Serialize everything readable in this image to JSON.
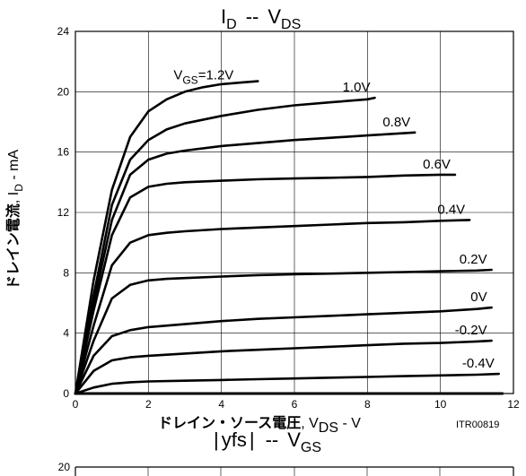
{
  "chart_data": {
    "type": "line",
    "title": {
      "main": "I",
      "sub": "D",
      "sep": "--",
      "main2": "V",
      "sub2": "DS"
    },
    "xlabel": {
      "jp": "ドレイン・ソース電圧",
      "main": ", V",
      "sub": "DS",
      "unit": " - V"
    },
    "ylabel": {
      "jp": "ドレイン電流",
      "main": ", I",
      "sub": "D",
      "unit": " - mA"
    },
    "figure_code": "ITR00819",
    "xlim": [
      0,
      12
    ],
    "ylim": [
      0,
      24
    ],
    "xticks": [
      "0",
      "2",
      "4",
      "6",
      "8",
      "10",
      "12"
    ],
    "yticks": [
      "0",
      "4",
      "8",
      "12",
      "16",
      "20",
      "24"
    ],
    "grid": true,
    "series": [
      {
        "name": "VGS=1.2V",
        "label_lead": "V",
        "label_sub": "GS",
        "label_tail": "=1.2V",
        "x": [
          0,
          0.5,
          1,
          1.5,
          2,
          2.5,
          3,
          3.5,
          4,
          4.5,
          5
        ],
        "y": [
          0,
          7.5,
          13.5,
          17,
          18.7,
          19.5,
          20,
          20.3,
          20.5,
          20.6,
          20.7
        ]
      },
      {
        "name": "1.0V",
        "x": [
          0,
          0.5,
          1,
          1.5,
          2,
          2.5,
          3,
          4,
          5,
          6,
          7,
          8,
          8.2
        ],
        "y": [
          0,
          6.5,
          12.5,
          15.5,
          16.8,
          17.5,
          17.9,
          18.4,
          18.8,
          19.1,
          19.3,
          19.5,
          19.6
        ]
      },
      {
        "name": "0.8V",
        "x": [
          0,
          0.5,
          1,
          1.5,
          2,
          2.5,
          3,
          4,
          5,
          6,
          7,
          8,
          9,
          9.3
        ],
        "y": [
          0,
          6,
          11.5,
          14.5,
          15.5,
          15.9,
          16.1,
          16.4,
          16.6,
          16.8,
          16.95,
          17.1,
          17.25,
          17.3
        ]
      },
      {
        "name": "0.6V",
        "x": [
          0,
          0.5,
          1,
          1.5,
          2,
          2.5,
          3,
          4,
          5,
          6,
          7,
          8,
          9,
          10,
          10.4
        ],
        "y": [
          0,
          5.5,
          10.5,
          13,
          13.7,
          13.9,
          14,
          14.1,
          14.2,
          14.25,
          14.3,
          14.35,
          14.45,
          14.5,
          14.5
        ]
      },
      {
        "name": "0.4V",
        "x": [
          0,
          0.5,
          1,
          1.5,
          2,
          2.5,
          3,
          4,
          5,
          6,
          7,
          8,
          9,
          10,
          10.8
        ],
        "y": [
          0,
          4.5,
          8.5,
          10,
          10.5,
          10.65,
          10.75,
          10.9,
          11,
          11.1,
          11.2,
          11.3,
          11.35,
          11.45,
          11.5
        ]
      },
      {
        "name": "0.2V",
        "x": [
          0,
          0.5,
          1,
          1.5,
          2,
          2.5,
          3,
          4,
          5,
          6,
          7,
          8,
          9,
          10,
          11,
          11.4
        ],
        "y": [
          0,
          3.5,
          6.3,
          7.2,
          7.5,
          7.6,
          7.65,
          7.75,
          7.85,
          7.9,
          7.95,
          8,
          8.05,
          8.1,
          8.15,
          8.2
        ]
      },
      {
        "name": "0V",
        "x": [
          0,
          0.5,
          1,
          1.5,
          2,
          3,
          4,
          5,
          6,
          7,
          8,
          9,
          10,
          11,
          11.4
        ],
        "y": [
          0,
          2.5,
          3.8,
          4.2,
          4.4,
          4.6,
          4.8,
          4.95,
          5.05,
          5.15,
          5.25,
          5.35,
          5.45,
          5.6,
          5.7
        ]
      },
      {
        "name": "-0.2V",
        "x": [
          0,
          0.5,
          1,
          1.5,
          2,
          3,
          4,
          5,
          6,
          7,
          8,
          9,
          10,
          11,
          11.4
        ],
        "y": [
          0,
          1.5,
          2.2,
          2.4,
          2.5,
          2.65,
          2.8,
          2.9,
          3,
          3.1,
          3.2,
          3.3,
          3.35,
          3.45,
          3.5
        ]
      },
      {
        "name": "-0.4V",
        "x": [
          0,
          0.5,
          1,
          1.5,
          2,
          3,
          4,
          5,
          6,
          7,
          8,
          9,
          10,
          11,
          11.6
        ],
        "y": [
          0,
          0.4,
          0.65,
          0.75,
          0.8,
          0.85,
          0.9,
          0.95,
          1,
          1.05,
          1.1,
          1.15,
          1.2,
          1.25,
          1.3
        ]
      },
      {
        "name": "",
        "x": [
          0,
          11.7
        ],
        "y": [
          0,
          0
        ]
      }
    ]
  },
  "second_chart": {
    "title": {
      "bar_left": "|",
      "main": "yfs",
      "bar_right": "|",
      "sep": "--",
      "main2": "V",
      "sub2": "GS"
    },
    "y_top_tick": "20"
  }
}
